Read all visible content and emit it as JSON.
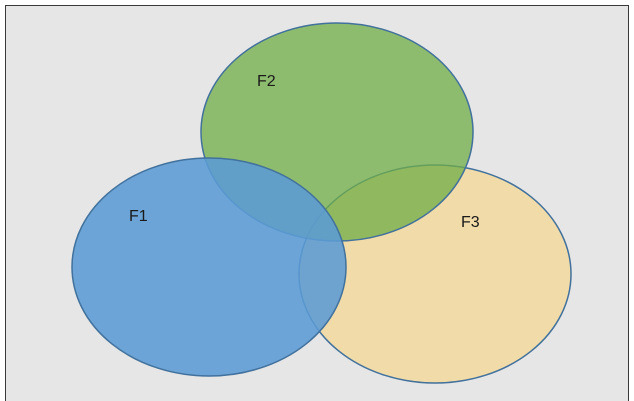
{
  "diagram": {
    "sets": [
      {
        "id": "f1",
        "label": "F1",
        "fill": "#5b9bd5",
        "stroke": "#41719c"
      },
      {
        "id": "f2",
        "label": "F2",
        "fill": "#7fb560",
        "stroke": "#41719c"
      },
      {
        "id": "f3",
        "label": "F3",
        "fill": "#f0daa5",
        "stroke": "#41719c"
      }
    ],
    "background": "#e6e6e6"
  }
}
